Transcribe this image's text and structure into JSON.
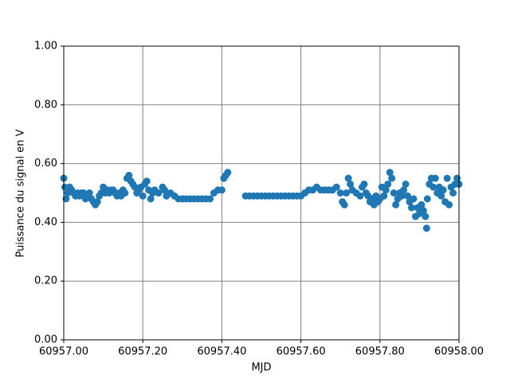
{
  "chart_data": {
    "type": "scatter",
    "xlabel": "MJD",
    "ylabel": "Puissance du signal en V",
    "color": "#1f77b4",
    "grid": true,
    "xlim": [
      60957.0,
      60958.0
    ],
    "xticks": [
      {
        "value": 60957.0,
        "label": "60957.00"
      },
      {
        "value": 60957.2,
        "label": "60957.20"
      },
      {
        "value": 60957.4,
        "label": "60957.40"
      },
      {
        "value": 60957.6,
        "label": "60957.60"
      },
      {
        "value": 60957.8,
        "label": "60957.80"
      },
      {
        "value": 60958.0,
        "label": "60958.00"
      }
    ],
    "ylim": [
      0,
      1
    ],
    "yticks": [
      {
        "value": 0,
        "label": "0.00"
      },
      {
        "value": 0.2,
        "label": "0.20"
      },
      {
        "value": 0.4,
        "label": "0.40"
      },
      {
        "value": 0.6,
        "label": "0.60"
      },
      {
        "value": 0.8,
        "label": "0.80"
      },
      {
        "value": 1,
        "label": "1.00"
      }
    ],
    "x": [
      60957.0,
      60957.003,
      60957.006,
      60957.01,
      60957.015,
      60957.02,
      60957.025,
      60957.03,
      60957.035,
      60957.04,
      60957.045,
      60957.05,
      60957.055,
      60957.06,
      60957.065,
      60957.07,
      60957.075,
      60957.08,
      60957.085,
      60957.09,
      60957.095,
      60957.1,
      60957.105,
      60957.11,
      60957.115,
      60957.12,
      60957.125,
      60957.13,
      60957.135,
      60957.14,
      60957.145,
      60957.15,
      60957.155,
      60957.16,
      60957.165,
      60957.17,
      60957.175,
      60957.18,
      60957.185,
      60957.19,
      60957.195,
      60957.2,
      60957.205,
      60957.21,
      60957.215,
      60957.22,
      60957.225,
      60957.23,
      60957.24,
      60957.25,
      60957.255,
      60957.26,
      60957.27,
      60957.28,
      60957.29,
      60957.3,
      60957.31,
      60957.32,
      60957.33,
      60957.34,
      60957.35,
      60957.36,
      60957.37,
      60957.38,
      60957.39,
      60957.4,
      60957.405,
      60957.41,
      60957.415,
      60957.46,
      60957.47,
      60957.48,
      60957.49,
      60957.5,
      60957.51,
      60957.52,
      60957.53,
      60957.54,
      60957.55,
      60957.56,
      60957.57,
      60957.58,
      60957.59,
      60957.6,
      60957.61,
      60957.62,
      60957.63,
      60957.64,
      60957.65,
      60957.66,
      60957.67,
      60957.68,
      60957.69,
      60957.7,
      60957.705,
      60957.71,
      60957.715,
      60957.72,
      60957.725,
      60957.73,
      60957.74,
      60957.75,
      60957.755,
      60957.76,
      60957.765,
      60957.77,
      60957.775,
      60957.78,
      60957.785,
      60957.79,
      60957.795,
      60957.8,
      60957.805,
      60957.81,
      60957.815,
      60957.82,
      60957.825,
      60957.83,
      60957.835,
      60957.84,
      60957.845,
      60957.85,
      60957.855,
      60957.86,
      60957.865,
      60957.87,
      60957.875,
      60957.88,
      60957.885,
      60957.89,
      60957.895,
      60957.9,
      60957.905,
      60957.91,
      60957.915,
      60957.918,
      60957.92,
      60957.925,
      60957.93,
      60957.935,
      60957.94,
      60957.945,
      60957.95,
      60957.955,
      60957.96,
      60957.965,
      60957.97,
      60957.975,
      60957.98,
      60957.985,
      60957.99,
      60957.995,
      60958.0
    ],
    "values": [
      0.55,
      0.52,
      0.48,
      0.5,
      0.52,
      0.51,
      0.5,
      0.49,
      0.5,
      0.49,
      0.5,
      0.5,
      0.48,
      0.49,
      0.5,
      0.48,
      0.47,
      0.46,
      0.47,
      0.49,
      0.5,
      0.52,
      0.5,
      0.51,
      0.5,
      0.51,
      0.51,
      0.5,
      0.49,
      0.5,
      0.49,
      0.51,
      0.5,
      0.55,
      0.56,
      0.54,
      0.53,
      0.52,
      0.5,
      0.51,
      0.52,
      0.49,
      0.53,
      0.54,
      0.51,
      0.48,
      0.5,
      0.51,
      0.5,
      0.52,
      0.51,
      0.49,
      0.5,
      0.49,
      0.48,
      0.48,
      0.48,
      0.48,
      0.48,
      0.48,
      0.48,
      0.48,
      0.48,
      0.5,
      0.51,
      0.51,
      0.55,
      0.56,
      0.57,
      0.49,
      0.49,
      0.49,
      0.49,
      0.49,
      0.49,
      0.49,
      0.49,
      0.49,
      0.49,
      0.49,
      0.49,
      0.49,
      0.49,
      0.49,
      0.5,
      0.51,
      0.51,
      0.52,
      0.51,
      0.51,
      0.51,
      0.51,
      0.52,
      0.5,
      0.47,
      0.46,
      0.5,
      0.55,
      0.53,
      0.51,
      0.5,
      0.49,
      0.52,
      0.53,
      0.5,
      0.49,
      0.47,
      0.48,
      0.46,
      0.49,
      0.47,
      0.48,
      0.52,
      0.49,
      0.51,
      0.53,
      0.57,
      0.55,
      0.5,
      0.46,
      0.48,
      0.5,
      0.49,
      0.51,
      0.53,
      0.49,
      0.47,
      0.45,
      0.48,
      0.42,
      0.45,
      0.43,
      0.46,
      0.44,
      0.42,
      0.38,
      0.48,
      0.53,
      0.55,
      0.52,
      0.55,
      0.5,
      0.52,
      0.49,
      0.51,
      0.47,
      0.55,
      0.46,
      0.52,
      0.5,
      0.53,
      0.55,
      0.53
    ]
  }
}
